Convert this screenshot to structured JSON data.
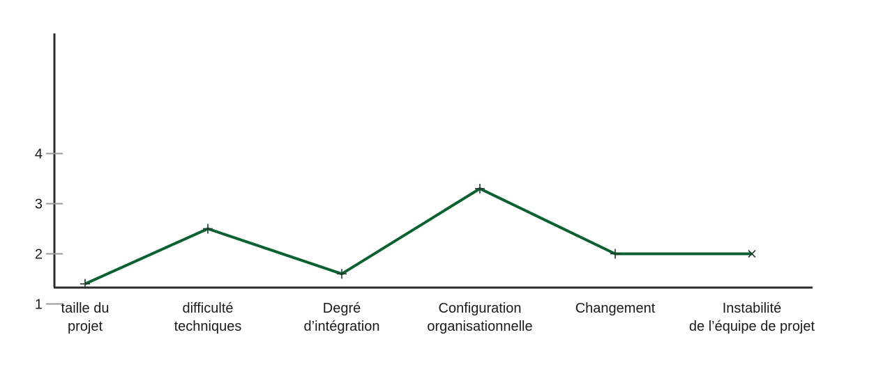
{
  "chart_data": {
    "type": "line",
    "categories": [
      [
        "taille du",
        "projet"
      ],
      [
        "difficulté",
        "techniques"
      ],
      [
        "Degré",
        "d’intégration"
      ],
      [
        "Configuration",
        "organisationnelle"
      ],
      [
        "Changement"
      ],
      [
        "Instabilité",
        "de l’équipe de projet"
      ]
    ],
    "values": [
      1.4,
      2.5,
      1.6,
      3.3,
      2.0,
      2.0
    ],
    "yticks": [
      1,
      2,
      3,
      4
    ],
    "ylim": [
      0.3,
      5.0
    ],
    "title": "",
    "xlabel": "",
    "ylabel": "",
    "line_color": "#0b6130",
    "axis_color": "#2b2b2b",
    "tick_color": "#9a9a9a",
    "markers": [
      "plus",
      "plus",
      "plus",
      "plus",
      "plus",
      "x"
    ]
  }
}
